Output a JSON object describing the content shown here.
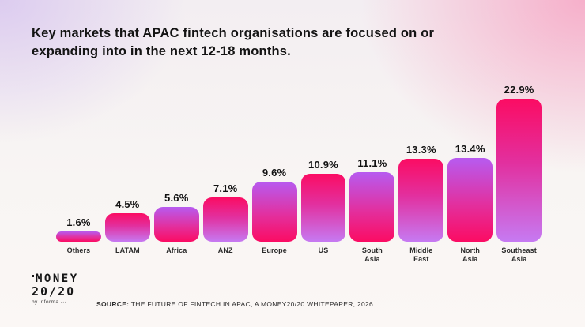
{
  "title": {
    "lines": [
      "Key markets that APAC fintech organisations are focused on or",
      "expanding into in the next 12-18 months."
    ]
  },
  "chart_data": {
    "type": "bar",
    "categories": [
      "Others",
      "LATAM",
      "Africa",
      "ANZ",
      "Europe",
      "US",
      "South Asia",
      "Middle East",
      "North Asia",
      "Southeast Asia"
    ],
    "values": [
      1.6,
      4.5,
      5.6,
      7.1,
      9.6,
      10.9,
      11.1,
      13.3,
      13.4,
      22.9
    ],
    "value_labels": [
      "1.6%",
      "4.5%",
      "5.6%",
      "7.1%",
      "9.6%",
      "10.9%",
      "11.1%",
      "13.3%",
      "13.4%",
      "22.9%"
    ],
    "unit": "%",
    "ylim": [
      0,
      23.5
    ],
    "grid": false,
    "legend": "none",
    "bar_style": {
      "pattern": "alternating-gradient",
      "gradient_a": "purple-to-pink",
      "gradient_b": "pink-to-purple",
      "pink": "#fb0c63",
      "purple": "#b75bf0",
      "light_purple": "#c67af2"
    }
  },
  "footer": {
    "logo_line1": "MONEY",
    "logo_line2": "20/20",
    "logo_byline": "by informa ···",
    "source_label": "SOURCE:",
    "source_text": " THE FUTURE OF FINTECH IN APAC, A MONEY20/20 WHITEPAPER, 2026"
  },
  "background": {
    "top_left": "#dbcaef",
    "top_right": "#f6acc8",
    "base": "#f9f6f4"
  }
}
